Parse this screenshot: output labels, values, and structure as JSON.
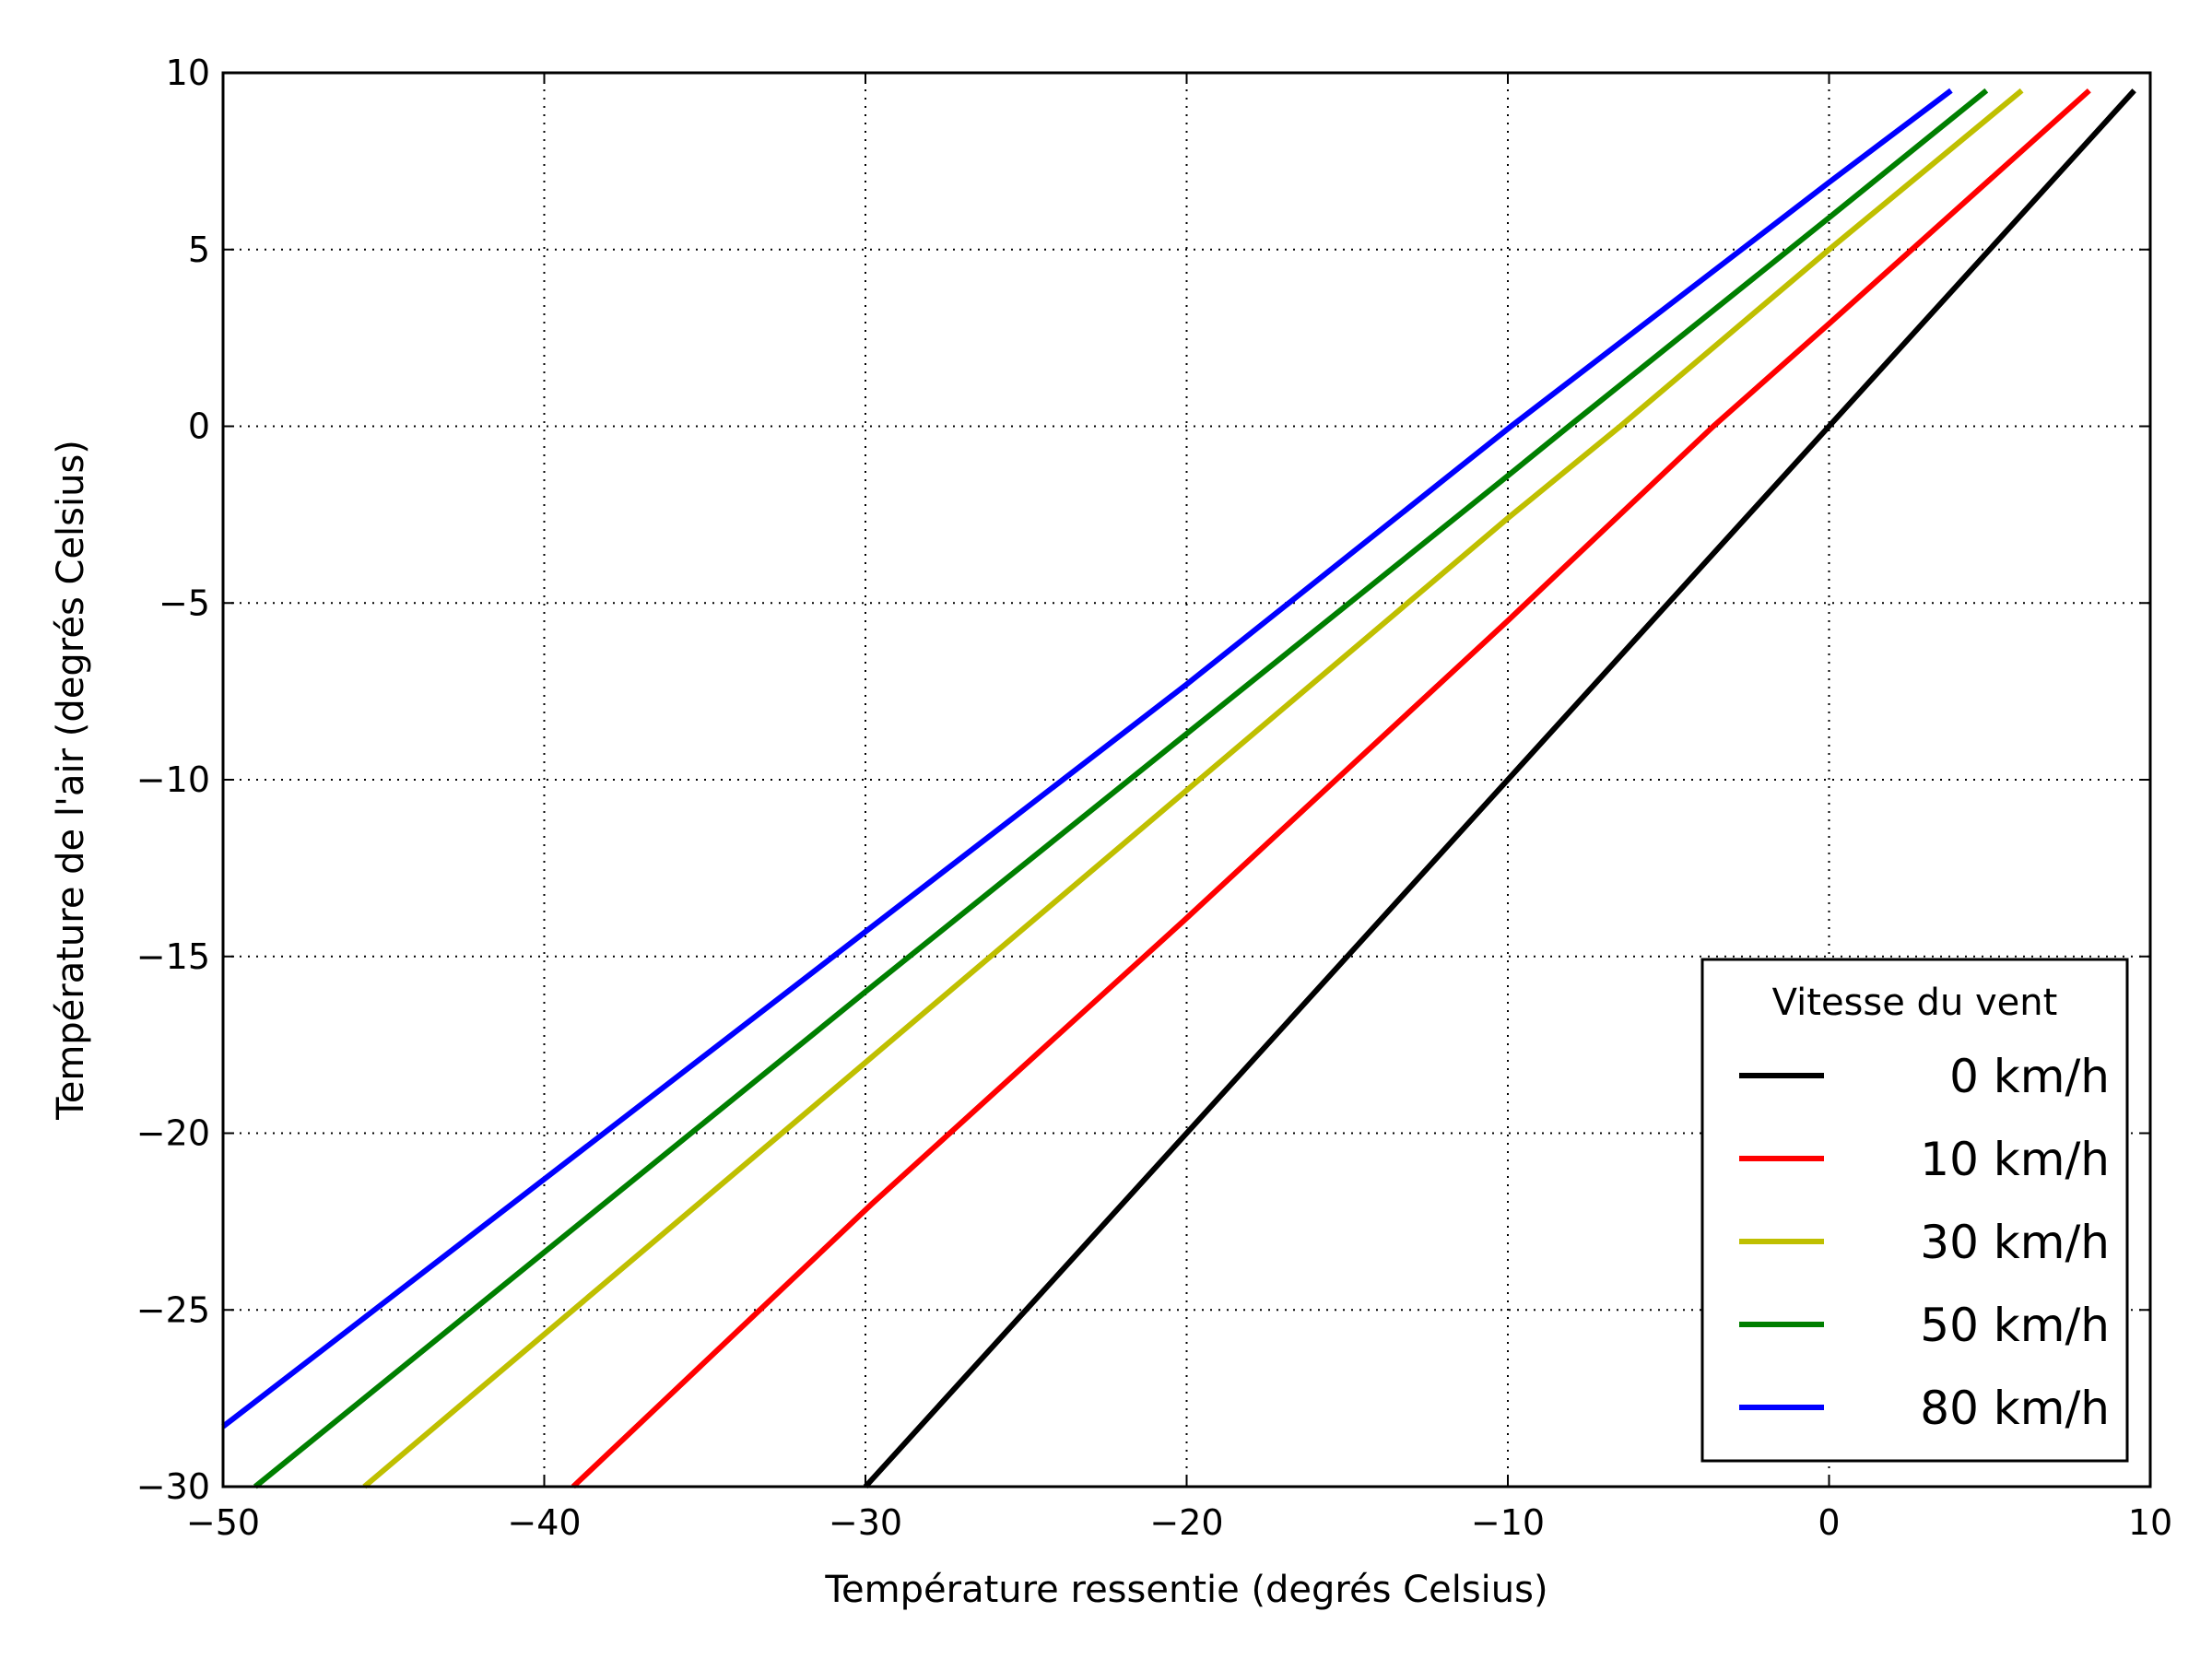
{
  "chart_data": {
    "type": "line",
    "title": "",
    "xlabel": "Température ressentie (degrés Celsius)",
    "ylabel": "Température de l'air (degrés Celsius)",
    "xlim": [
      -50,
      10
    ],
    "ylim": [
      -30,
      10
    ],
    "xticks": [
      -50,
      -40,
      -30,
      -20,
      -10,
      0,
      10
    ],
    "yticks": [
      -30,
      -25,
      -20,
      -15,
      -10,
      -5,
      0,
      5,
      10
    ],
    "xtick_labels": [
      "−50",
      "−40",
      "−30",
      "−20",
      "−10",
      "0",
      "10"
    ],
    "ytick_labels": [
      "−30",
      "−25",
      "−20",
      "−15",
      "−10",
      "−5",
      "0",
      "5",
      "10"
    ],
    "grid": true,
    "legend": {
      "title": "Vitesse du vent",
      "placement": "lower-right"
    },
    "series": [
      {
        "name": "0 km/h",
        "color": "#000000",
        "points": [
          [
            -30.0,
            -30.0
          ],
          [
            -20.0,
            -20.0
          ],
          [
            -10.0,
            -10.0
          ],
          [
            0.0,
            0.0
          ],
          [
            9.5,
            9.5
          ]
        ]
      },
      {
        "name": "10 km/h",
        "color": "#ff0000",
        "points": [
          [
            -39.1,
            -30.0
          ],
          [
            -29.8,
            -22.0
          ],
          [
            -20.1,
            -14.0
          ],
          [
            -10.0,
            -5.5
          ],
          [
            -3.6,
            0.0
          ],
          [
            0.0,
            2.9
          ],
          [
            8.1,
            9.5
          ]
        ]
      },
      {
        "name": "30 km/h",
        "color": "#bfbf00",
        "points": [
          [
            -45.6,
            -30.0
          ],
          [
            -30.0,
            -18.0
          ],
          [
            -20.0,
            -10.3
          ],
          [
            -10.0,
            -2.6
          ],
          [
            -6.5,
            0.0
          ],
          [
            0.0,
            5.0
          ],
          [
            6.0,
            9.5
          ]
        ]
      },
      {
        "name": "50 km/h",
        "color": "#007f00",
        "points": [
          [
            -49.0,
            -30.0
          ],
          [
            -30.0,
            -16.0
          ],
          [
            -20.0,
            -8.7
          ],
          [
            -10.0,
            -1.4
          ],
          [
            -8.1,
            0.0
          ],
          [
            0.0,
            5.9
          ],
          [
            4.9,
            9.5
          ]
        ]
      },
      {
        "name": "80 km/h",
        "color": "#0000ff",
        "points": [
          [
            -50.0,
            -28.3
          ],
          [
            -40.0,
            -21.3
          ],
          [
            -30.0,
            -14.3
          ],
          [
            -20.0,
            -7.3
          ],
          [
            -9.9,
            0.0
          ],
          [
            0.0,
            6.9
          ],
          [
            3.8,
            9.5
          ]
        ]
      }
    ]
  }
}
